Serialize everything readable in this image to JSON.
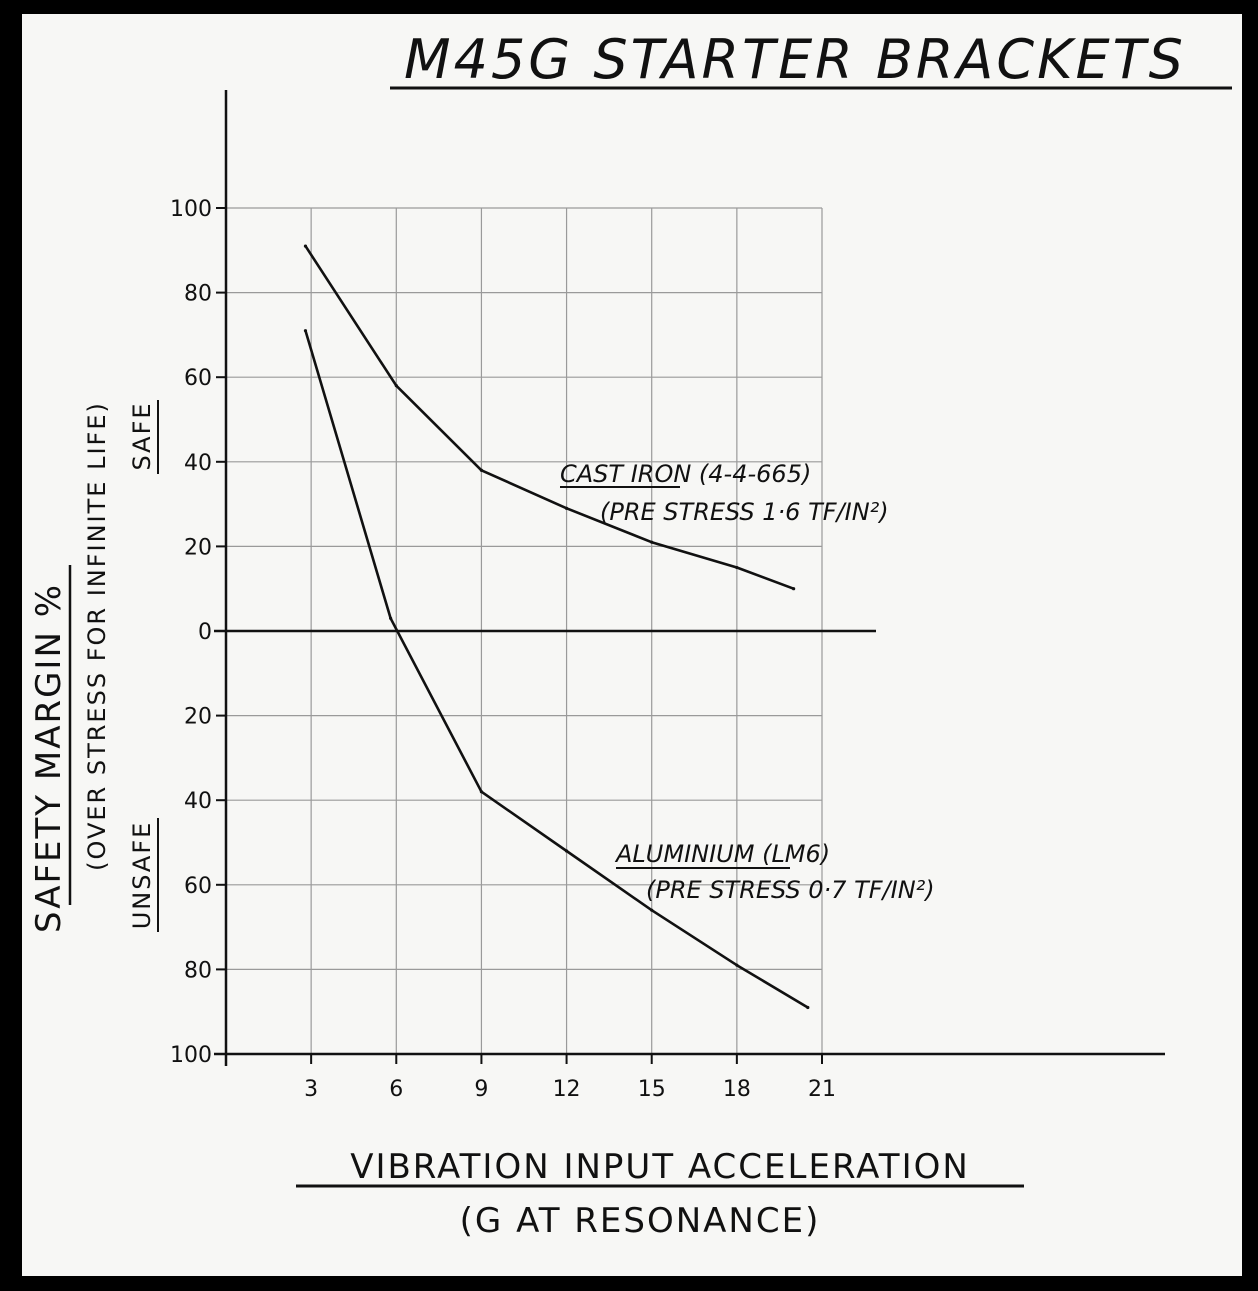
{
  "chart_data": {
    "type": "line",
    "title": "M45G STARTER BRACKETS",
    "xlabel": "VIBRATION INPUT ACCELERATION",
    "xlabel_sub": "(G AT RESONANCE)",
    "ylabel": "SAFETY MARGIN %",
    "ylabel_sub": "(OVER STRESS FOR INFINITE LIFE)",
    "y_region_labels": {
      "upper": "SAFE",
      "lower": "UNSAFE"
    },
    "x_ticks": [
      "3",
      "6",
      "9",
      "12",
      "15",
      "18",
      "21"
    ],
    "y_ticks": [
      {
        "value": 100,
        "label": "100"
      },
      {
        "value": 80,
        "label": "80"
      },
      {
        "value": 60,
        "label": "60"
      },
      {
        "value": 40,
        "label": "40"
      },
      {
        "value": 20,
        "label": "20"
      },
      {
        "value": 0,
        "label": "0"
      },
      {
        "value": -20,
        "label": "20"
      },
      {
        "value": -40,
        "label": "40"
      },
      {
        "value": -60,
        "label": "60"
      },
      {
        "value": -80,
        "label": "80"
      },
      {
        "value": -100,
        "label": "100"
      }
    ],
    "xlim": [
      0,
      21
    ],
    "ylim": [
      -100,
      100
    ],
    "grid": true,
    "series": [
      {
        "name": "CAST IRON (4-4-665)",
        "note": "(PRE STRESS 1·6 TF/IN²)",
        "x": [
          2.8,
          6,
          9,
          12,
          15,
          18,
          20
        ],
        "y": [
          91,
          58,
          38,
          29,
          21,
          15,
          10
        ]
      },
      {
        "name": "ALUMINIUM (LM6)",
        "note": "(PRE STRESS 0·7 TF/IN²)",
        "x": [
          2.8,
          5.8,
          9,
          12,
          15,
          18,
          20.5
        ],
        "y": [
          71,
          3,
          -38,
          -52,
          -66,
          -79,
          -89
        ]
      }
    ]
  }
}
